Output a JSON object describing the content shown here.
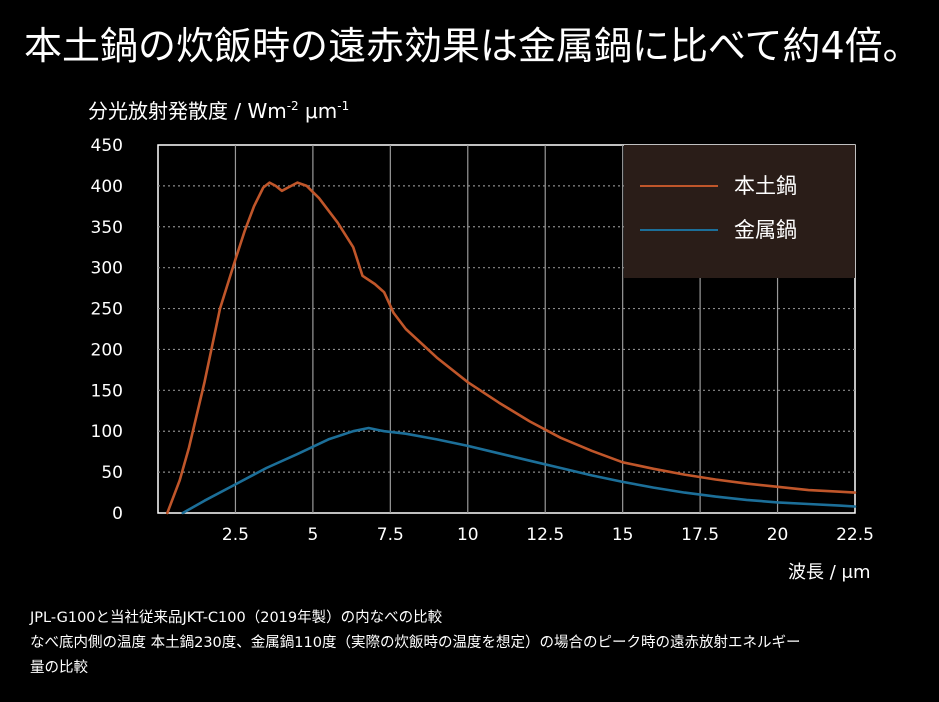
{
  "headline": "本土鍋の炊飯時の遠赤効果は金属鍋に比べて約4倍。",
  "notes": [
    "JPL-G100と当社従来品JKT-C100（2019年製）の内なべの比較",
    "なべ底内側の温度 本土鍋230度、金属鍋110度（実際の炊飯時の温度を想定）の場合のピーク時の遠赤放射エネルギー",
    "量の比較"
  ],
  "chart_data": {
    "type": "line",
    "title": "",
    "ylabel": "分光放射発散度 / Wm",
    "ylabel_unit_exp1": "-2",
    "ylabel_unit_mid": " μm",
    "ylabel_unit_exp2": "-1",
    "xlabel": "波長 / μm",
    "xlim": [
      0,
      22.5
    ],
    "ylim": [
      0,
      450
    ],
    "x_ticks": [
      2.5,
      5,
      7.5,
      10,
      12.5,
      15,
      17.5,
      20,
      22.5
    ],
    "x_tick_labels": [
      "2.5",
      "5",
      "7.5",
      "10",
      "12.5",
      "15",
      "17.5",
      "20",
      "22.5"
    ],
    "y_ticks": [
      0,
      50,
      100,
      150,
      200,
      250,
      300,
      350,
      400,
      450
    ],
    "y_tick_labels": [
      "0",
      "50",
      "100",
      "150",
      "200",
      "250",
      "300",
      "350",
      "400",
      "450"
    ],
    "grid": true,
    "legend_position": "top-right",
    "series": [
      {
        "name": "本土鍋",
        "color": "#c0562a",
        "points": [
          [
            0.3,
            0
          ],
          [
            0.7,
            40
          ],
          [
            1.0,
            80
          ],
          [
            1.5,
            160
          ],
          [
            2.0,
            250
          ],
          [
            2.5,
            310
          ],
          [
            2.8,
            345
          ],
          [
            3.1,
            375
          ],
          [
            3.4,
            398
          ],
          [
            3.6,
            404
          ],
          [
            3.8,
            400
          ],
          [
            4.0,
            394
          ],
          [
            4.2,
            398
          ],
          [
            4.5,
            404
          ],
          [
            4.8,
            400
          ],
          [
            5.2,
            385
          ],
          [
            5.8,
            355
          ],
          [
            6.3,
            325
          ],
          [
            6.6,
            290
          ],
          [
            7.0,
            280
          ],
          [
            7.3,
            270
          ],
          [
            7.6,
            245
          ],
          [
            8.0,
            225
          ],
          [
            9.0,
            190
          ],
          [
            10.0,
            160
          ],
          [
            11.0,
            135
          ],
          [
            12.0,
            112
          ],
          [
            13.0,
            92
          ],
          [
            14.0,
            76
          ],
          [
            15.0,
            62
          ],
          [
            16.0,
            54
          ],
          [
            17.0,
            47
          ],
          [
            18.0,
            41
          ],
          [
            19.0,
            36
          ],
          [
            20.0,
            32
          ],
          [
            21.0,
            28
          ],
          [
            22.0,
            26
          ],
          [
            22.5,
            25
          ]
        ]
      },
      {
        "name": "金属鍋",
        "color": "#1c6f99",
        "points": [
          [
            0.8,
            0
          ],
          [
            1.5,
            15
          ],
          [
            2.5,
            35
          ],
          [
            3.5,
            55
          ],
          [
            4.5,
            72
          ],
          [
            5.5,
            90
          ],
          [
            6.3,
            100
          ],
          [
            6.8,
            104
          ],
          [
            7.3,
            100
          ],
          [
            8.0,
            97
          ],
          [
            9.0,
            90
          ],
          [
            10.0,
            82
          ],
          [
            11.0,
            73
          ],
          [
            12.0,
            64
          ],
          [
            13.0,
            55
          ],
          [
            14.0,
            46
          ],
          [
            15.0,
            38
          ],
          [
            16.0,
            31
          ],
          [
            17.0,
            25
          ],
          [
            18.0,
            20
          ],
          [
            19.0,
            16
          ],
          [
            20.0,
            13
          ],
          [
            21.0,
            11
          ],
          [
            22.0,
            9
          ],
          [
            22.5,
            8
          ]
        ]
      }
    ]
  }
}
